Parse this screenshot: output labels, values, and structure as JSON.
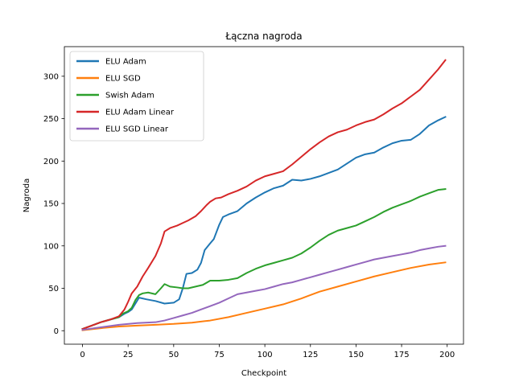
{
  "chart_data": {
    "type": "line",
    "title": "Łączna nagroda",
    "xlabel": "Checkpoint",
    "ylabel": "Nagroda",
    "xlim": [
      -9.95,
      208.95
    ],
    "ylim": [
      -15.9,
      334.9
    ],
    "xticks": [
      0,
      25,
      50,
      75,
      100,
      125,
      150,
      175,
      200
    ],
    "yticks": [
      0,
      50,
      100,
      150,
      200,
      250,
      300
    ],
    "grid": false,
    "legend_position": "top-left",
    "series": [
      {
        "name": "ELU Adam",
        "color": "#1f77b4",
        "x": [
          0,
          5,
          10,
          15,
          20,
          23,
          25,
          27,
          29,
          31,
          35,
          40,
          45,
          50,
          53,
          55,
          57,
          60,
          63,
          65,
          67,
          70,
          72,
          75,
          77,
          80,
          85,
          90,
          95,
          100,
          105,
          110,
          115,
          120,
          125,
          130,
          135,
          140,
          145,
          150,
          155,
          160,
          165,
          170,
          175,
          180,
          185,
          190,
          195,
          199
        ],
        "y": [
          2,
          6,
          10,
          13,
          16,
          20,
          22,
          25,
          32,
          39,
          37,
          35,
          32,
          33,
          37,
          50,
          67,
          68,
          72,
          80,
          95,
          103,
          108,
          125,
          134,
          137,
          141,
          150,
          157,
          163,
          168,
          171,
          178,
          177,
          179,
          182,
          186,
          190,
          197,
          204,
          208,
          210,
          216,
          221,
          224,
          225,
          232,
          242,
          248,
          252
        ]
      },
      {
        "name": "ELU SGD",
        "color": "#ff7f0e",
        "x": [
          0,
          10,
          20,
          30,
          40,
          50,
          60,
          70,
          80,
          90,
          100,
          110,
          120,
          130,
          140,
          150,
          160,
          170,
          180,
          190,
          199
        ],
        "y": [
          0.5,
          3,
          5,
          6,
          7,
          8,
          9.5,
          12,
          16,
          21,
          26,
          31,
          38,
          46,
          52,
          58,
          64,
          69,
          74,
          78,
          80.5
        ]
      },
      {
        "name": "Swish Adam",
        "color": "#2ca02c",
        "x": [
          0,
          5,
          10,
          15,
          20,
          22,
          25,
          27,
          29,
          31,
          33,
          36,
          40,
          43,
          45,
          48,
          52,
          55,
          58,
          62,
          66,
          70,
          75,
          80,
          85,
          90,
          95,
          100,
          105,
          110,
          115,
          120,
          125,
          130,
          135,
          140,
          145,
          150,
          155,
          160,
          165,
          170,
          175,
          180,
          185,
          190,
          195,
          199
        ],
        "y": [
          2,
          6,
          10,
          13,
          16,
          20,
          23,
          27,
          36,
          42,
          44,
          45,
          43,
          50,
          55,
          52,
          51,
          50,
          50,
          52,
          54,
          59,
          59,
          60,
          62,
          68,
          73,
          77,
          80,
          83,
          86,
          91,
          98,
          106,
          113,
          118,
          121,
          124,
          129,
          134,
          140,
          145,
          149,
          153,
          158,
          162,
          166,
          167
        ]
      },
      {
        "name": "ELU Adam Linear",
        "color": "#d62728",
        "x": [
          0,
          5,
          10,
          15,
          20,
          23,
          25,
          27,
          30,
          33,
          36,
          40,
          43,
          45,
          48,
          52,
          55,
          58,
          62,
          65,
          68,
          70,
          73,
          76,
          80,
          85,
          90,
          95,
          100,
          105,
          110,
          115,
          120,
          125,
          130,
          135,
          140,
          145,
          150,
          155,
          160,
          165,
          170,
          175,
          180,
          185,
          190,
          195,
          199
        ],
        "y": [
          2,
          6,
          10,
          13,
          17,
          25,
          34,
          44,
          52,
          64,
          74,
          88,
          103,
          117,
          121,
          124,
          127,
          130,
          135,
          141,
          148,
          152,
          156,
          157,
          161,
          165,
          170,
          177,
          182,
          185,
          188,
          196,
          205,
          214,
          222,
          229,
          234,
          237,
          242,
          246,
          249,
          255,
          262,
          268,
          276,
          284,
          296,
          308,
          319
        ]
      },
      {
        "name": "ELU SGD Linear",
        "color": "#9467bd",
        "x": [
          0,
          10,
          20,
          30,
          40,
          45,
          50,
          55,
          60,
          65,
          70,
          75,
          80,
          85,
          90,
          95,
          100,
          105,
          110,
          115,
          120,
          125,
          130,
          135,
          140,
          145,
          150,
          155,
          160,
          165,
          170,
          175,
          180,
          185,
          190,
          195,
          199
        ],
        "y": [
          1,
          4,
          7,
          9,
          10,
          12,
          15,
          18,
          21,
          25,
          29,
          33,
          38,
          43,
          45,
          47,
          49,
          52,
          55,
          57,
          60,
          63,
          66,
          69,
          72,
          75,
          78,
          81,
          84,
          86,
          88,
          90,
          92,
          95,
          97,
          99,
          100
        ]
      }
    ]
  }
}
